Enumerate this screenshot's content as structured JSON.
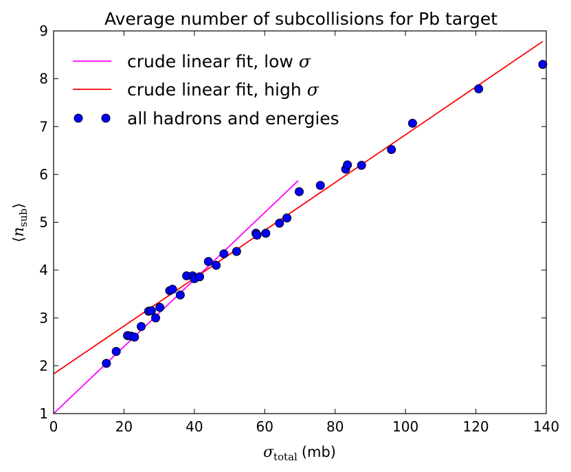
{
  "chart_data": {
    "type": "scatter",
    "title": "Average number of subcollisions for Pb target",
    "xlabel": {
      "symbol": "σ",
      "subscript": "total",
      "unit": "(mb)"
    },
    "ylabel": {
      "symbol": "n",
      "subscript": "sub"
    },
    "xlim": [
      0,
      140
    ],
    "ylim": [
      1,
      9
    ],
    "xticks": [
      0,
      20,
      40,
      60,
      80,
      100,
      120,
      140
    ],
    "yticks": [
      1,
      2,
      3,
      4,
      5,
      6,
      7,
      8,
      9
    ],
    "legend_position": "top-left",
    "series": [
      {
        "name": "crude linear fit, low σ",
        "label_text": "crude linear fit, low",
        "label_symbol": "σ",
        "kind": "line",
        "color": "#ff00ff",
        "x": [
          0,
          69.5
        ],
        "y": [
          1.0,
          5.87
        ]
      },
      {
        "name": "crude linear fit, high σ",
        "label_text": "crude linear fit, high",
        "label_symbol": "σ",
        "kind": "line",
        "color": "#ff0000",
        "x": [
          0,
          139
        ],
        "y": [
          1.83,
          8.78
        ]
      },
      {
        "name": "all hadrons and energies",
        "label_text": "all hadrons and energies",
        "label_symbol": "",
        "kind": "scatter",
        "color": "#0000ff",
        "edge_color": "#000000",
        "points": [
          [
            15.0,
            2.05
          ],
          [
            17.8,
            2.3
          ],
          [
            21.0,
            2.63
          ],
          [
            22.0,
            2.62
          ],
          [
            23.0,
            2.6
          ],
          [
            24.9,
            2.82
          ],
          [
            27.0,
            3.14
          ],
          [
            27.8,
            3.15
          ],
          [
            29.0,
            3.0
          ],
          [
            30.2,
            3.22
          ],
          [
            33.0,
            3.57
          ],
          [
            33.8,
            3.6
          ],
          [
            36.0,
            3.48
          ],
          [
            37.8,
            3.88
          ],
          [
            39.5,
            3.88
          ],
          [
            40.0,
            3.82
          ],
          [
            41.5,
            3.86
          ],
          [
            44.0,
            4.18
          ],
          [
            46.2,
            4.1
          ],
          [
            48.4,
            4.34
          ],
          [
            52.0,
            4.39
          ],
          [
            57.5,
            4.77
          ],
          [
            57.8,
            4.73
          ],
          [
            60.3,
            4.77
          ],
          [
            64.2,
            4.98
          ],
          [
            66.3,
            5.09
          ],
          [
            69.8,
            5.64
          ],
          [
            75.8,
            5.77
          ],
          [
            83.0,
            6.11
          ],
          [
            83.5,
            6.2
          ],
          [
            87.5,
            6.19
          ],
          [
            96.0,
            6.52
          ],
          [
            102.0,
            7.07
          ],
          [
            120.8,
            7.79
          ],
          [
            139.0,
            8.3
          ]
        ]
      }
    ]
  }
}
